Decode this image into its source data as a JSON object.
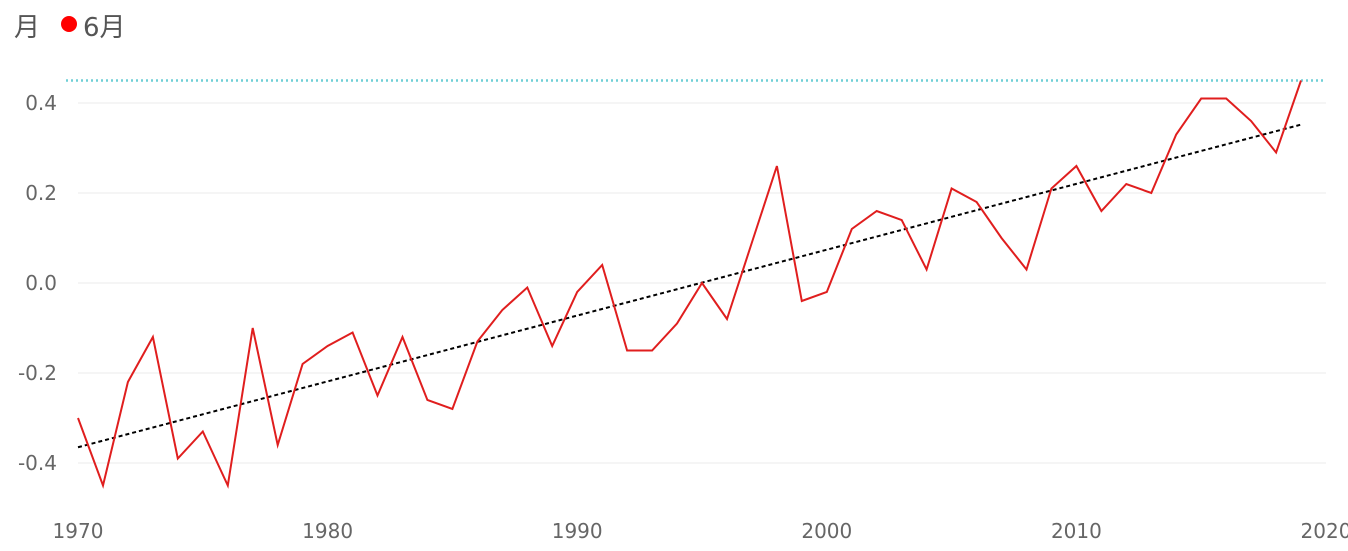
{
  "legend": {
    "title": "月",
    "series_label": "6月"
  },
  "colors": {
    "series": "#e01e1e",
    "trend": "#000000",
    "reference": "#6fcfd6",
    "grid": "#ebebeb",
    "legend_marker": "#ff0000"
  },
  "chart_data": {
    "type": "line",
    "title": "",
    "xlabel": "",
    "ylabel": "",
    "xlim": [
      1970,
      2020
    ],
    "ylim": [
      -0.5,
      0.5
    ],
    "x_ticks": [
      1970,
      1980,
      1990,
      2000,
      2010,
      2020
    ],
    "y_ticks": [
      -0.4,
      -0.2,
      0.0,
      0.2,
      0.4
    ],
    "y_tick_labels": [
      "-0.4",
      "-0.2",
      "0.0",
      "0.2",
      "0.4"
    ],
    "grid": "horizontal",
    "legend_position": "top-left",
    "series": [
      {
        "name": "6月",
        "x": [
          1970,
          1971,
          1972,
          1973,
          1974,
          1975,
          1976,
          1977,
          1978,
          1979,
          1980,
          1981,
          1982,
          1983,
          1984,
          1985,
          1986,
          1987,
          1988,
          1989,
          1990,
          1991,
          1992,
          1993,
          1994,
          1995,
          1996,
          1997,
          1998,
          1999,
          2000,
          2001,
          2002,
          2003,
          2004,
          2005,
          2006,
          2007,
          2008,
          2009,
          2010,
          2011,
          2012,
          2013,
          2014,
          2015,
          2016,
          2017,
          2018,
          2019
        ],
        "values": [
          -0.3,
          -0.45,
          -0.22,
          -0.12,
          -0.39,
          -0.33,
          -0.45,
          -0.1,
          -0.36,
          -0.18,
          -0.14,
          -0.11,
          -0.25,
          -0.12,
          -0.26,
          -0.28,
          -0.13,
          -0.06,
          -0.01,
          -0.14,
          -0.02,
          0.04,
          -0.15,
          -0.15,
          -0.09,
          0.0,
          -0.08,
          0.09,
          0.26,
          -0.04,
          -0.02,
          0.12,
          0.16,
          0.14,
          0.03,
          0.21,
          0.18,
          0.1,
          0.03,
          0.21,
          0.26,
          0.16,
          0.22,
          0.2,
          0.33,
          0.41,
          0.41,
          0.36,
          0.29,
          0.45
        ]
      }
    ],
    "trend_line": {
      "x": [
        1970,
        2019
      ],
      "values": [
        -0.365,
        0.352
      ]
    },
    "reference_line": {
      "value": 0.45
    }
  }
}
